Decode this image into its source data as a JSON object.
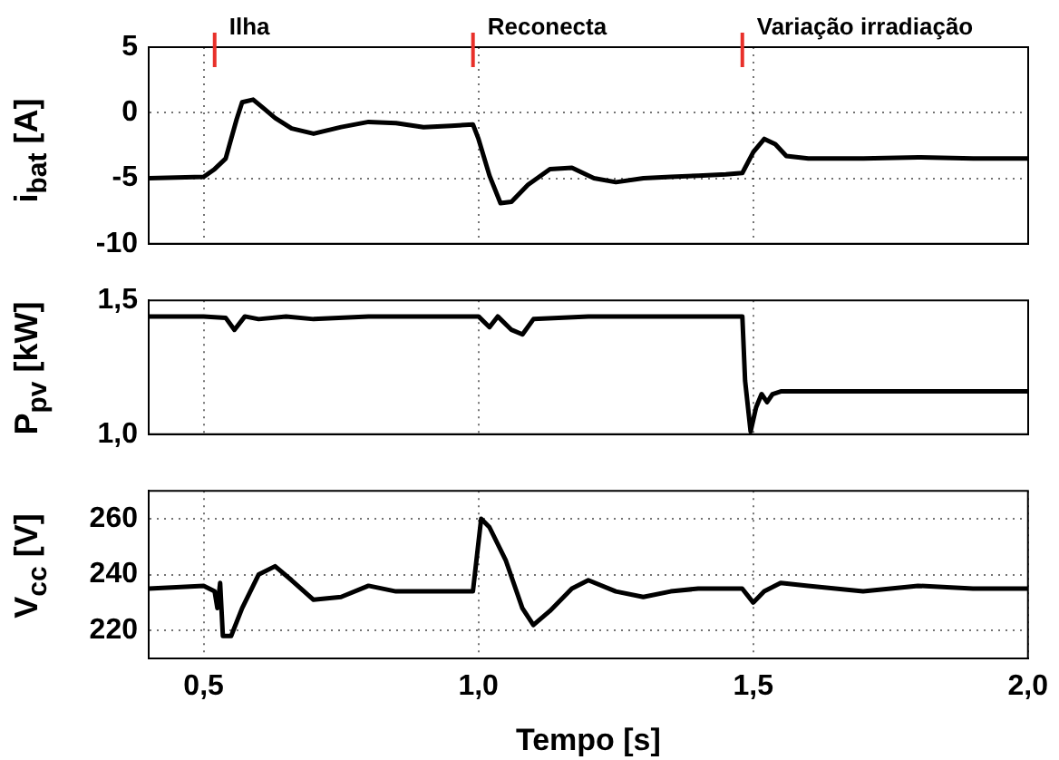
{
  "chart_data": [
    {
      "type": "line",
      "ylabel": "i$_{bat}$ [A]",
      "xlim": [
        0.4,
        2.0
      ],
      "xticks": [
        {
          "value": 0.5,
          "label": null
        },
        {
          "value": 1.0,
          "label": null
        },
        {
          "value": 1.5,
          "label": null
        },
        {
          "value": 2.0,
          "label": null
        }
      ],
      "ylim": [
        -10,
        5
      ],
      "yticks": [
        -10,
        -5,
        0,
        5
      ],
      "grid": true,
      "tick_labels": "y",
      "marker": "none",
      "line_style": "solid",
      "ref_lines": [
        {
          "axis": "x",
          "value": 0.52,
          "label": "Ilha",
          "color": "#e8302a"
        },
        {
          "axis": "x",
          "value": 0.99,
          "label": "Reconecta",
          "color": "#e8302a"
        },
        {
          "axis": "x",
          "value": 1.48,
          "label": "Variação irradiação",
          "color": "#e8302a"
        }
      ],
      "x": [
        0.4,
        0.5,
        0.52,
        0.54,
        0.56,
        0.57,
        0.59,
        0.61,
        0.63,
        0.66,
        0.7,
        0.75,
        0.8,
        0.85,
        0.9,
        0.95,
        0.99,
        1.0,
        1.02,
        1.04,
        1.06,
        1.09,
        1.13,
        1.17,
        1.21,
        1.25,
        1.3,
        1.35,
        1.4,
        1.45,
        1.48,
        1.5,
        1.52,
        1.54,
        1.56,
        1.6,
        1.7,
        1.8,
        1.9,
        2.0
      ],
      "series": [
        {
          "color": "#000000",
          "values": [
            -5,
            -4.9,
            -4.3,
            -3.5,
            -0.5,
            0.8,
            1.0,
            0.3,
            -0.4,
            -1.2,
            -1.6,
            -1.1,
            -0.7,
            -0.8,
            -1.1,
            -1.0,
            -0.9,
            -2.0,
            -4.8,
            -6.9,
            -6.8,
            -5.5,
            -4.3,
            -4.2,
            -5.0,
            -5.3,
            -5.0,
            -4.9,
            -4.8,
            -4.7,
            -4.6,
            -3.0,
            -2.0,
            -2.4,
            -3.3,
            -3.5,
            -3.5,
            -3.4,
            -3.5,
            -3.5
          ]
        }
      ]
    },
    {
      "type": "line",
      "ylabel": "P$_{pv}$ [kW]",
      "xlim": [
        0.4,
        2.0
      ],
      "xticks": [
        {
          "value": 0.5,
          "label": null
        },
        {
          "value": 1.0,
          "label": null
        },
        {
          "value": 1.5,
          "label": null
        },
        {
          "value": 2.0,
          "label": null
        }
      ],
      "ylim": [
        1.0,
        1.5
      ],
      "yticks": [
        {
          "value": 1.0,
          "label": "1,0"
        },
        {
          "value": 1.5,
          "label": "1,5"
        }
      ],
      "grid": "x",
      "tick_labels": "y",
      "marker": "none",
      "line_style": "solid",
      "x": [
        0.4,
        0.5,
        0.54,
        0.556,
        0.575,
        0.6,
        0.65,
        0.7,
        0.8,
        1.0,
        1.02,
        1.035,
        1.06,
        1.08,
        1.1,
        1.2,
        1.3,
        1.48,
        1.485,
        1.495,
        1.505,
        1.515,
        1.525,
        1.535,
        1.55,
        1.7,
        2.0
      ],
      "series": [
        {
          "color": "#000000",
          "values": [
            1.44,
            1.44,
            1.435,
            1.39,
            1.44,
            1.43,
            1.44,
            1.43,
            1.44,
            1.44,
            1.4,
            1.44,
            1.39,
            1.373,
            1.43,
            1.44,
            1.44,
            1.44,
            1.2,
            1.01,
            1.1,
            1.15,
            1.12,
            1.15,
            1.16,
            1.16,
            1.16
          ]
        }
      ]
    },
    {
      "type": "line",
      "ylabel": "V$_{cc}$ [V]",
      "xlabel": "Tempo [s]",
      "xlim": [
        0.4,
        2.0
      ],
      "xticks": [
        {
          "value": 0.5,
          "label": "0,5"
        },
        {
          "value": 1.0,
          "label": "1,0"
        },
        {
          "value": 1.5,
          "label": "1,5"
        },
        {
          "value": 2.0,
          "label": "2,0"
        }
      ],
      "ylim": [
        210,
        270
      ],
      "yticks": [
        220,
        240,
        260
      ],
      "grid": true,
      "marker": "none",
      "line_style": "solid",
      "x": [
        0.4,
        0.5,
        0.52,
        0.525,
        0.53,
        0.535,
        0.55,
        0.57,
        0.6,
        0.63,
        0.66,
        0.7,
        0.75,
        0.8,
        0.85,
        0.9,
        0.99,
        1.005,
        1.02,
        1.05,
        1.08,
        1.1,
        1.13,
        1.17,
        1.2,
        1.25,
        1.3,
        1.35,
        1.4,
        1.48,
        1.5,
        1.52,
        1.55,
        1.6,
        1.7,
        1.8,
        1.9,
        2.0
      ],
      "series": [
        {
          "color": "#000000",
          "values": [
            235,
            236,
            234,
            228,
            237,
            218,
            218,
            228,
            240,
            243,
            238,
            231,
            232,
            236,
            234,
            234,
            234,
            260,
            257,
            245,
            228,
            222,
            227,
            235,
            238,
            234,
            232,
            234,
            235,
            235,
            230,
            234,
            237,
            236,
            234,
            236,
            235,
            235
          ]
        }
      ]
    }
  ]
}
